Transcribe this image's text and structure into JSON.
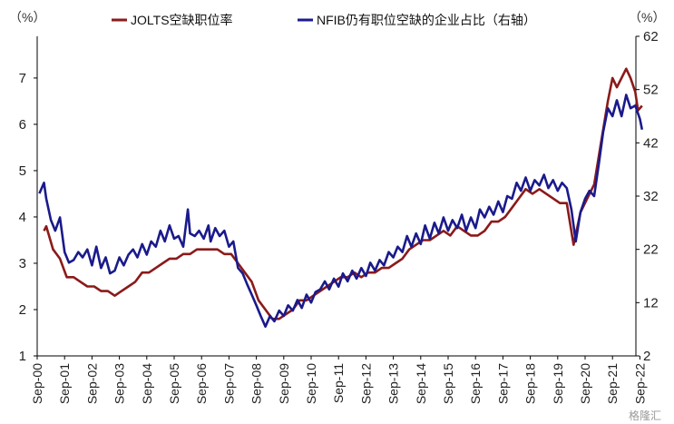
{
  "chart_data": {
    "type": "line",
    "left_unit": "（%）",
    "right_unit": "（%）",
    "y_left": {
      "min": 1,
      "max": 7.9,
      "ticks": [
        1,
        2,
        3,
        4,
        5,
        6,
        7
      ]
    },
    "y_right": {
      "min": 2,
      "max": 62,
      "ticks": [
        2,
        12,
        22,
        32,
        42,
        52,
        62
      ]
    },
    "x_labels": [
      "Sep-00",
      "Sep-01",
      "Sep-02",
      "Sep-03",
      "Sep-04",
      "Sep-05",
      "Sep-06",
      "Sep-07",
      "Sep-08",
      "Sep-09",
      "Sep-10",
      "Sep-11",
      "Sep-12",
      "Sep-13",
      "Sep-14",
      "Sep-15",
      "Sep-16",
      "Sep-17",
      "Sep-18",
      "Sep-19",
      "Sep-20",
      "Sep-21",
      "Sep-22"
    ],
    "legend_position": "top",
    "grid": false,
    "series": [
      {
        "name": "JOLTS空缺职位率",
        "axis": "left",
        "color": "#8b1a1a",
        "points": [
          [
            2000.92,
            3.7
          ],
          [
            2001.0,
            3.8
          ],
          [
            2001.25,
            3.3
          ],
          [
            2001.5,
            3.1
          ],
          [
            2001.75,
            2.7
          ],
          [
            2002.0,
            2.7
          ],
          [
            2002.25,
            2.6
          ],
          [
            2002.5,
            2.5
          ],
          [
            2002.75,
            2.5
          ],
          [
            2003.0,
            2.4
          ],
          [
            2003.25,
            2.4
          ],
          [
            2003.5,
            2.3
          ],
          [
            2003.75,
            2.4
          ],
          [
            2004.0,
            2.5
          ],
          [
            2004.25,
            2.6
          ],
          [
            2004.5,
            2.8
          ],
          [
            2004.75,
            2.8
          ],
          [
            2005.0,
            2.9
          ],
          [
            2005.25,
            3.0
          ],
          [
            2005.5,
            3.1
          ],
          [
            2005.75,
            3.1
          ],
          [
            2006.0,
            3.2
          ],
          [
            2006.25,
            3.2
          ],
          [
            2006.5,
            3.3
          ],
          [
            2006.75,
            3.3
          ],
          [
            2007.0,
            3.3
          ],
          [
            2007.25,
            3.3
          ],
          [
            2007.5,
            3.2
          ],
          [
            2007.75,
            3.2
          ],
          [
            2008.0,
            3.0
          ],
          [
            2008.25,
            2.8
          ],
          [
            2008.5,
            2.6
          ],
          [
            2008.75,
            2.2
          ],
          [
            2009.0,
            2.0
          ],
          [
            2009.25,
            1.8
          ],
          [
            2009.5,
            1.8
          ],
          [
            2009.75,
            1.9
          ],
          [
            2010.0,
            2.0
          ],
          [
            2010.25,
            2.2
          ],
          [
            2010.5,
            2.2
          ],
          [
            2010.75,
            2.3
          ],
          [
            2011.0,
            2.4
          ],
          [
            2011.25,
            2.5
          ],
          [
            2011.5,
            2.6
          ],
          [
            2011.75,
            2.7
          ],
          [
            2012.0,
            2.7
          ],
          [
            2012.25,
            2.8
          ],
          [
            2012.5,
            2.7
          ],
          [
            2012.75,
            2.8
          ],
          [
            2013.0,
            2.8
          ],
          [
            2013.25,
            2.9
          ],
          [
            2013.5,
            2.9
          ],
          [
            2013.75,
            3.0
          ],
          [
            2014.0,
            3.1
          ],
          [
            2014.25,
            3.3
          ],
          [
            2014.5,
            3.4
          ],
          [
            2014.75,
            3.5
          ],
          [
            2015.0,
            3.5
          ],
          [
            2015.25,
            3.6
          ],
          [
            2015.5,
            3.7
          ],
          [
            2015.75,
            3.6
          ],
          [
            2016.0,
            3.8
          ],
          [
            2016.25,
            3.7
          ],
          [
            2016.5,
            3.6
          ],
          [
            2016.75,
            3.6
          ],
          [
            2017.0,
            3.7
          ],
          [
            2017.25,
            3.9
          ],
          [
            2017.5,
            3.9
          ],
          [
            2017.75,
            4.0
          ],
          [
            2018.0,
            4.2
          ],
          [
            2018.25,
            4.4
          ],
          [
            2018.5,
            4.6
          ],
          [
            2018.75,
            4.5
          ],
          [
            2019.0,
            4.6
          ],
          [
            2019.25,
            4.5
          ],
          [
            2019.5,
            4.4
          ],
          [
            2019.75,
            4.3
          ],
          [
            2020.0,
            4.3
          ],
          [
            2020.25,
            3.4
          ],
          [
            2020.5,
            4.1
          ],
          [
            2020.75,
            4.4
          ],
          [
            2021.0,
            4.7
          ],
          [
            2021.25,
            5.6
          ],
          [
            2021.5,
            6.5
          ],
          [
            2021.67,
            7.0
          ],
          [
            2021.83,
            6.8
          ],
          [
            2022.0,
            7.0
          ],
          [
            2022.17,
            7.2
          ],
          [
            2022.33,
            7.0
          ],
          [
            2022.5,
            6.7
          ],
          [
            2022.6,
            6.3
          ],
          [
            2022.75,
            6.4
          ]
        ]
      },
      {
        "name": "NFIB仍有职位空缺的企业占比（右轴）",
        "axis": "right",
        "color": "#1a1a8c",
        "points": [
          [
            2000.75,
            32.5
          ],
          [
            2000.92,
            34.5
          ],
          [
            2001.0,
            31.5
          ],
          [
            2001.17,
            27.5
          ],
          [
            2001.33,
            25.5
          ],
          [
            2001.5,
            28.0
          ],
          [
            2001.67,
            21.5
          ],
          [
            2001.83,
            19.5
          ],
          [
            2002.0,
            20.0
          ],
          [
            2002.17,
            21.5
          ],
          [
            2002.33,
            20.5
          ],
          [
            2002.5,
            22.0
          ],
          [
            2002.67,
            19.0
          ],
          [
            2002.83,
            22.5
          ],
          [
            2003.0,
            18.5
          ],
          [
            2003.17,
            20.5
          ],
          [
            2003.33,
            17.5
          ],
          [
            2003.5,
            18.0
          ],
          [
            2003.67,
            20.5
          ],
          [
            2003.83,
            19.0
          ],
          [
            2004.0,
            21.0
          ],
          [
            2004.17,
            22.0
          ],
          [
            2004.33,
            20.5
          ],
          [
            2004.5,
            23.0
          ],
          [
            2004.67,
            21.0
          ],
          [
            2004.83,
            23.5
          ],
          [
            2005.0,
            22.5
          ],
          [
            2005.17,
            25.5
          ],
          [
            2005.33,
            23.5
          ],
          [
            2005.5,
            26.5
          ],
          [
            2005.67,
            24.0
          ],
          [
            2005.83,
            24.5
          ],
          [
            2006.0,
            22.5
          ],
          [
            2006.17,
            29.5
          ],
          [
            2006.25,
            25.0
          ],
          [
            2006.42,
            24.5
          ],
          [
            2006.58,
            25.5
          ],
          [
            2006.75,
            24.0
          ],
          [
            2006.92,
            26.5
          ],
          [
            2007.0,
            23.5
          ],
          [
            2007.17,
            26.0
          ],
          [
            2007.33,
            24.5
          ],
          [
            2007.5,
            25.5
          ],
          [
            2007.67,
            22.5
          ],
          [
            2007.83,
            23.5
          ],
          [
            2008.0,
            18.5
          ],
          [
            2008.17,
            17.5
          ],
          [
            2008.33,
            15.5
          ],
          [
            2008.5,
            13.5
          ],
          [
            2008.67,
            11.5
          ],
          [
            2008.83,
            9.5
          ],
          [
            2009.0,
            7.5
          ],
          [
            2009.17,
            9.5
          ],
          [
            2009.33,
            8.5
          ],
          [
            2009.5,
            10.5
          ],
          [
            2009.67,
            9.5
          ],
          [
            2009.83,
            11.5
          ],
          [
            2010.0,
            10.5
          ],
          [
            2010.17,
            12.5
          ],
          [
            2010.33,
            11.0
          ],
          [
            2010.5,
            13.5
          ],
          [
            2010.67,
            12.0
          ],
          [
            2010.83,
            14.0
          ],
          [
            2011.0,
            14.5
          ],
          [
            2011.17,
            16.0
          ],
          [
            2011.33,
            14.5
          ],
          [
            2011.5,
            16.5
          ],
          [
            2011.67,
            15.0
          ],
          [
            2011.83,
            17.5
          ],
          [
            2012.0,
            16.0
          ],
          [
            2012.17,
            18.0
          ],
          [
            2012.33,
            16.5
          ],
          [
            2012.5,
            18.5
          ],
          [
            2012.67,
            17.0
          ],
          [
            2012.83,
            19.5
          ],
          [
            2013.0,
            18.0
          ],
          [
            2013.17,
            20.0
          ],
          [
            2013.33,
            19.0
          ],
          [
            2013.5,
            21.5
          ],
          [
            2013.67,
            20.5
          ],
          [
            2013.83,
            22.5
          ],
          [
            2014.0,
            21.5
          ],
          [
            2014.17,
            24.5
          ],
          [
            2014.33,
            22.5
          ],
          [
            2014.5,
            25.0
          ],
          [
            2014.67,
            23.0
          ],
          [
            2014.83,
            26.5
          ],
          [
            2015.0,
            24.0
          ],
          [
            2015.17,
            27.0
          ],
          [
            2015.33,
            25.0
          ],
          [
            2015.5,
            28.0
          ],
          [
            2015.67,
            25.5
          ],
          [
            2015.83,
            27.5
          ],
          [
            2016.0,
            26.0
          ],
          [
            2016.17,
            28.5
          ],
          [
            2016.33,
            25.5
          ],
          [
            2016.5,
            28.0
          ],
          [
            2016.67,
            26.0
          ],
          [
            2016.83,
            29.5
          ],
          [
            2017.0,
            28.0
          ],
          [
            2017.17,
            30.0
          ],
          [
            2017.33,
            28.5
          ],
          [
            2017.5,
            31.0
          ],
          [
            2017.67,
            29.0
          ],
          [
            2017.83,
            32.0
          ],
          [
            2018.0,
            31.5
          ],
          [
            2018.17,
            34.5
          ],
          [
            2018.33,
            33.0
          ],
          [
            2018.5,
            35.5
          ],
          [
            2018.67,
            33.0
          ],
          [
            2018.83,
            35.0
          ],
          [
            2019.0,
            34.0
          ],
          [
            2019.17,
            36.0
          ],
          [
            2019.33,
            33.5
          ],
          [
            2019.5,
            35.0
          ],
          [
            2019.67,
            33.0
          ],
          [
            2019.83,
            34.5
          ],
          [
            2020.0,
            33.5
          ],
          [
            2020.17,
            29.5
          ],
          [
            2020.33,
            23.5
          ],
          [
            2020.5,
            29.0
          ],
          [
            2020.67,
            31.5
          ],
          [
            2020.83,
            33.0
          ],
          [
            2021.0,
            32.0
          ],
          [
            2021.17,
            38.0
          ],
          [
            2021.33,
            44.0
          ],
          [
            2021.5,
            48.5
          ],
          [
            2021.67,
            47.0
          ],
          [
            2021.83,
            50.0
          ],
          [
            2022.0,
            47.0
          ],
          [
            2022.17,
            51.0
          ],
          [
            2022.33,
            48.5
          ],
          [
            2022.5,
            49.0
          ],
          [
            2022.67,
            46.5
          ],
          [
            2022.75,
            44.5
          ]
        ]
      }
    ]
  },
  "watermark": "格隆汇"
}
